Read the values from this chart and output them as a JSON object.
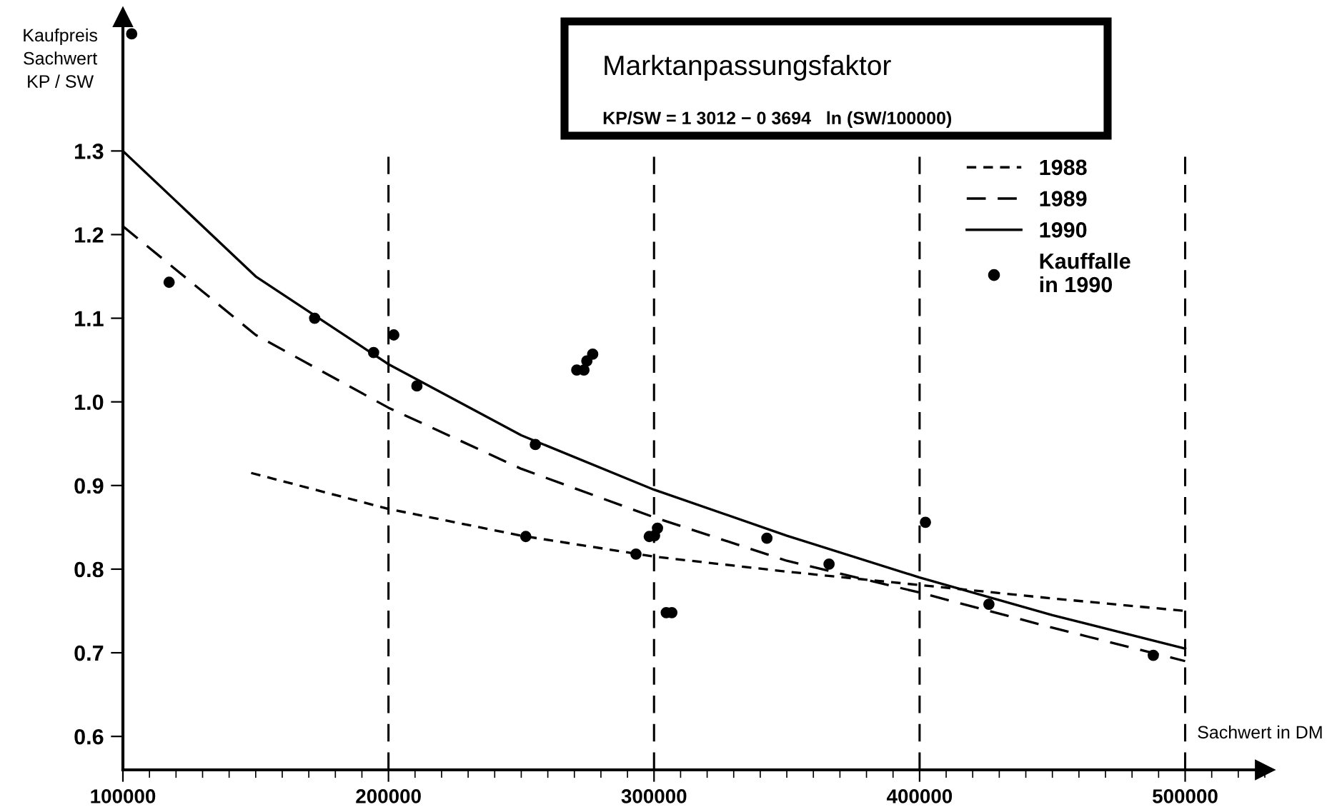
{
  "chart_data": {
    "type": "line",
    "title": "Marktanpassungsfaktor",
    "subtitle": "KP/SW = 1 3012 − 0 3694   ln (SW/100000)",
    "xlabel": "Sachwert in DM",
    "ylabel": "Kaufpreis\nSachwert\nKP / SW",
    "xlim": [
      100000,
      530000
    ],
    "ylim": [
      0.56,
      1.46
    ],
    "xticks": [
      100000,
      200000,
      300000,
      400000,
      500000
    ],
    "yticks": [
      0.6,
      0.7,
      0.8,
      0.9,
      {
        "value": 1.0,
        "label": "1.0"
      },
      1.1,
      1.2,
      1.3
    ],
    "grid": false,
    "legend": "right",
    "ref_lines": [
      {
        "axis": "x",
        "value": 200000,
        "color": "#000000",
        "line_style": "dashed"
      },
      {
        "axis": "x",
        "value": 300000,
        "color": "#000000",
        "line_style": "dashed"
      },
      {
        "axis": "x",
        "value": 400000,
        "color": "#000000",
        "line_style": "dashed"
      },
      {
        "axis": "x",
        "value": 500000,
        "color": "#000000",
        "line_style": "dashed"
      }
    ],
    "series": [
      {
        "name": "1988",
        "line_style": "dotted",
        "marker": "none",
        "color": "#000000",
        "x": [
          148300,
          200000,
          250000,
          300000,
          350000,
          400000,
          450000,
          500000
        ],
        "values": [
          0.915,
          0.872,
          0.84,
          0.815,
          0.797,
          0.781,
          0.765,
          0.75
        ]
      },
      {
        "name": "1989",
        "line_style": "dashed",
        "marker": "none",
        "color": "#000000",
        "x": [
          100000,
          150000,
          200000,
          250000,
          300000,
          350000,
          400000,
          450000,
          500000
        ],
        "values": [
          1.21,
          1.08,
          0.993,
          0.92,
          0.862,
          0.81,
          0.772,
          0.73,
          0.69
        ]
      },
      {
        "name": "1990",
        "line_style": "solid",
        "marker": "none",
        "color": "#000000",
        "x": [
          100000,
          150000,
          200000,
          250000,
          300000,
          350000,
          400000,
          450000,
          500000
        ],
        "values": [
          1.3,
          1.15,
          1.045,
          0.96,
          0.895,
          0.84,
          0.79,
          0.745,
          0.705
        ]
      },
      {
        "name": "Kauffalle\nin 1990",
        "type": "scatter",
        "marker": "circle",
        "color": "#000000",
        "x": [
          103300,
          117400,
          172200,
          194400,
          202000,
          210700,
          270900,
          273600,
          274700,
          276900,
          255300,
          251700,
          293200,
          298200,
          300200,
          301300,
          304600,
          306700,
          342500,
          365900,
          402200,
          426100,
          488000
        ],
        "values": [
          1.44,
          1.143,
          1.1,
          1.059,
          1.08,
          1.019,
          1.038,
          1.038,
          1.049,
          1.057,
          0.949,
          0.839,
          0.818,
          0.839,
          0.84,
          0.849,
          0.748,
          0.748,
          0.837,
          0.806,
          0.856,
          0.758,
          0.697
        ]
      }
    ]
  }
}
